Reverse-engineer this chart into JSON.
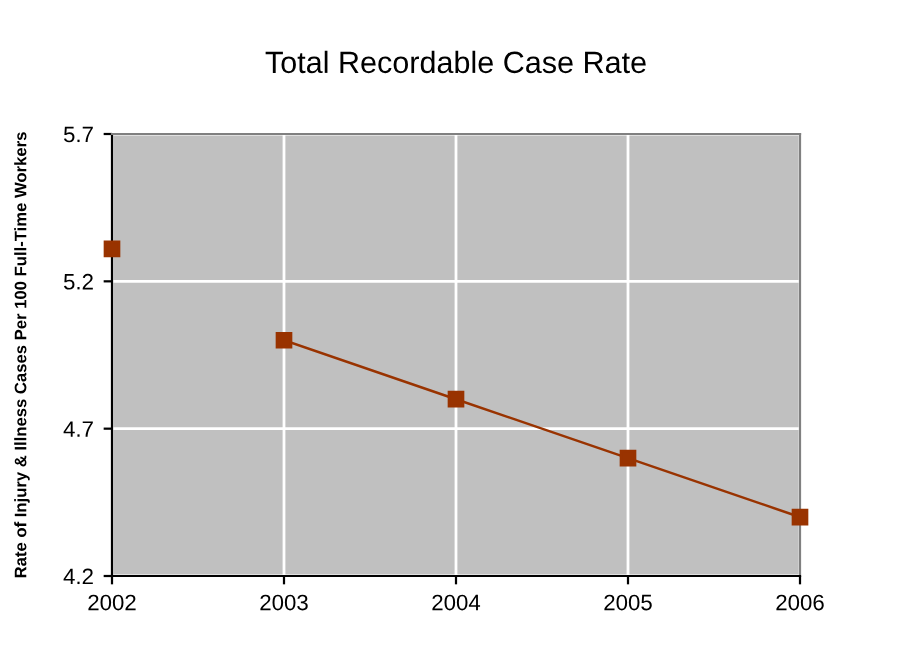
{
  "chart_data": {
    "type": "line",
    "title": "Total Recordable Case Rate",
    "ylabel": "Rate of Injury & Illness Cases Per 100 Full-Time Workers",
    "series": [
      {
        "color": "#993300",
        "x": [
          2002
        ],
        "values": [
          5.31
        ]
      },
      {
        "color": "#993300",
        "x": [
          2003,
          2004,
          2005,
          2006
        ],
        "values": [
          5.0,
          4.8,
          4.6,
          4.4
        ]
      }
    ],
    "xlim": [
      2002,
      2006
    ],
    "xticks": [
      2002,
      2003,
      2004,
      2005,
      2006
    ],
    "ylim": [
      4.2,
      5.7
    ],
    "yticks": [
      4.2,
      4.7,
      5.2,
      5.7
    ],
    "grid": true,
    "marker": "square",
    "line_style": "solid"
  }
}
